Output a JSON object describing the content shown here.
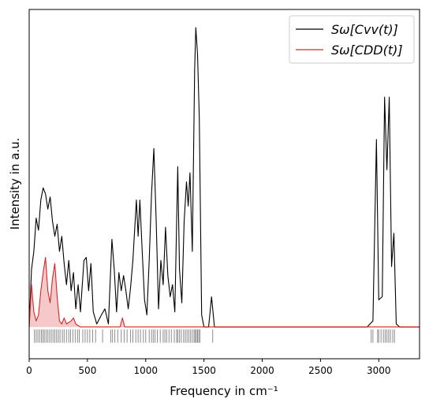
{
  "chart_data": {
    "type": "line",
    "xlabel": "Frequency in cm⁻¹",
    "ylabel": "Intensity in a.u.",
    "xlim": [
      0,
      3350
    ],
    "ylim": [
      -0.105,
      1.05
    ],
    "xticks": [
      0,
      500,
      1000,
      1500,
      2000,
      2500,
      3000
    ],
    "legend": "upper right",
    "series": [
      {
        "name": "Sω[Cvv(t)]",
        "color": "#000000",
        "fill": false,
        "x": [
          0,
          20,
          40,
          60,
          80,
          100,
          120,
          140,
          160,
          180,
          200,
          220,
          240,
          260,
          280,
          300,
          320,
          340,
          360,
          380,
          400,
          420,
          440,
          470,
          490,
          510,
          530,
          550,
          580,
          620,
          650,
          680,
          710,
          730,
          750,
          770,
          790,
          810,
          830,
          850,
          870,
          890,
          920,
          935,
          950,
          970,
          990,
          1010,
          1030,
          1050,
          1070,
          1090,
          1110,
          1130,
          1150,
          1170,
          1190,
          1210,
          1230,
          1250,
          1275,
          1290,
          1310,
          1330,
          1350,
          1365,
          1380,
          1400,
          1420,
          1430,
          1445,
          1460,
          1480,
          1500,
          1540,
          1565,
          1590,
          2900,
          2950,
          2980,
          3000,
          3030,
          3050,
          3070,
          3090,
          3110,
          3130,
          3150,
          3180,
          3350
        ],
        "values": [
          0,
          0.19,
          0.25,
          0.36,
          0.32,
          0.42,
          0.46,
          0.44,
          0.39,
          0.43,
          0.35,
          0.3,
          0.34,
          0.25,
          0.3,
          0.21,
          0.14,
          0.22,
          0.12,
          0.18,
          0.06,
          0.14,
          0.05,
          0.22,
          0.23,
          0.12,
          0.21,
          0.05,
          0.01,
          0.04,
          0.06,
          0.01,
          0.29,
          0.19,
          0.05,
          0.18,
          0.12,
          0.17,
          0.12,
          0.06,
          0.13,
          0.22,
          0.42,
          0.3,
          0.42,
          0.25,
          0.09,
          0.04,
          0.22,
          0.44,
          0.59,
          0.35,
          0.06,
          0.22,
          0.14,
          0.33,
          0.17,
          0.1,
          0.14,
          0.05,
          0.53,
          0.19,
          0.08,
          0.35,
          0.48,
          0.4,
          0.51,
          0.25,
          0.85,
          0.99,
          0.9,
          0.69,
          0.04,
          0,
          0,
          0.1,
          0,
          0,
          0.02,
          0.62,
          0.09,
          0.1,
          0.76,
          0.52,
          0.76,
          0.2,
          0.31,
          0.01,
          0,
          0
        ]
      },
      {
        "name": "Sω[CDD(t)]",
        "color": "#d62728",
        "fill": true,
        "x": [
          0,
          20,
          40,
          60,
          80,
          100,
          120,
          140,
          160,
          180,
          200,
          220,
          240,
          260,
          280,
          300,
          320,
          360,
          380,
          400,
          440,
          780,
          800,
          820,
          3350
        ],
        "values": [
          0,
          0.14,
          0.05,
          0.02,
          0.04,
          0.12,
          0.18,
          0.23,
          0.12,
          0.08,
          0.16,
          0.21,
          0.1,
          0.02,
          0.01,
          0.03,
          0.01,
          0.02,
          0.03,
          0.01,
          0,
          0,
          0.03,
          0,
          0
        ]
      }
    ],
    "rug": [
      45,
      60,
      75,
      90,
      105,
      118,
      130,
      145,
      160,
      175,
      190,
      205,
      220,
      235,
      250,
      265,
      285,
      300,
      320,
      340,
      355,
      375,
      395,
      415,
      430,
      460,
      480,
      500,
      520,
      545,
      570,
      630,
      700,
      715,
      735,
      760,
      790,
      815,
      840,
      870,
      890,
      915,
      935,
      955,
      980,
      1000,
      1030,
      1050,
      1065,
      1080,
      1100,
      1125,
      1150,
      1165,
      1180,
      1200,
      1220,
      1245,
      1265,
      1275,
      1290,
      1305,
      1325,
      1340,
      1355,
      1370,
      1385,
      1400,
      1415,
      1425,
      1435,
      1445,
      1455,
      1465,
      1575,
      2935,
      2950,
      2990,
      3000,
      3020,
      3040,
      3055,
      3070,
      3085,
      3100,
      3120,
      3135
    ]
  }
}
